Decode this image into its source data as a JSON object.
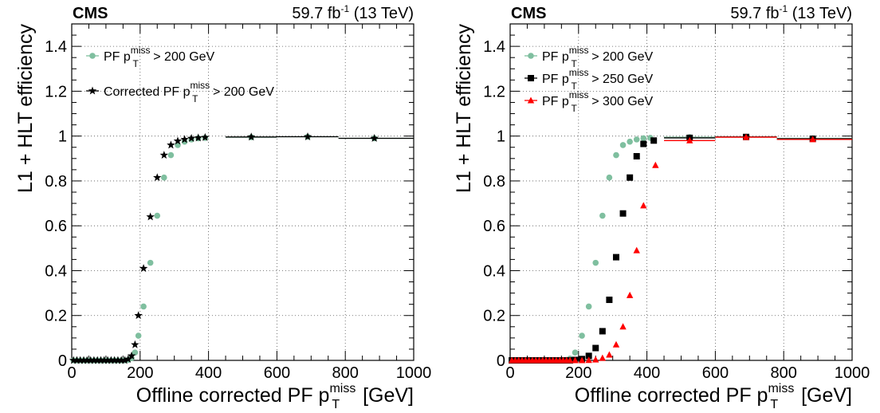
{
  "chart_data": [
    {
      "type": "scatter",
      "experiment": "CMS",
      "lumi": {
        "value": "59.7 fb",
        "exp": "-1",
        "energy": "(13 TeV)"
      },
      "xlabel": {
        "pre": "Offline corrected PF p",
        "sup": "miss",
        "sub": "T",
        "post": " [GeV]"
      },
      "ylabel": "L1 + HLT efficiency",
      "xlim": [
        0,
        1000
      ],
      "ylim": [
        0,
        1.5
      ],
      "xticks": [
        0,
        200,
        400,
        600,
        800,
        1000
      ],
      "yticks": [
        0,
        0.2,
        0.4,
        0.6,
        0.8,
        1,
        1.2,
        1.4
      ],
      "xtick_labels": [
        "0",
        "200",
        "400",
        "600",
        "800",
        "1000"
      ],
      "ytick_labels": [
        "0",
        "0.2",
        "0.4",
        "0.6",
        "0.8",
        "1",
        "1.2",
        "1.4"
      ],
      "grid": true,
      "legend_position": "top-left",
      "series": [
        {
          "name": "PF p_T^miss > 200 GeV",
          "label": {
            "pre": "PF p",
            "sup": "miss",
            "sub": "T",
            "post": " > 200 GeV"
          },
          "marker": "circle",
          "color": "#7fbf9f",
          "x": [
            5,
            15,
            25,
            35,
            45,
            55,
            65,
            75,
            85,
            95,
            105,
            115,
            125,
            135,
            145,
            155,
            165,
            175,
            185,
            195,
            210,
            230,
            250,
            270,
            290,
            310,
            330,
            350,
            370,
            390
          ],
          "y": [
            0,
            0,
            0,
            0,
            0,
            0,
            0,
            0,
            0,
            0,
            0,
            0,
            0,
            0,
            0,
            0,
            0.002,
            0.01,
            0.035,
            0.11,
            0.24,
            0.435,
            0.645,
            0.815,
            0.915,
            0.96,
            0.975,
            0.985,
            0.99,
            0.992
          ],
          "xerr": [],
          "wide_bins": [
            {
              "x": 525,
              "lo": 450,
              "hi": 600,
              "y": 0.995
            },
            {
              "x": 690,
              "lo": 600,
              "hi": 780,
              "y": 0.997
            },
            {
              "x": 885,
              "lo": 780,
              "hi": 1000,
              "y": 0.99
            }
          ]
        },
        {
          "name": "Corrected PF p_T^miss > 200 GeV",
          "label": {
            "pre": "Corrected PF p",
            "sup": "miss",
            "sub": "T",
            "post": " > 200 GeV"
          },
          "marker": "star",
          "color": "#000000",
          "x": [
            5,
            15,
            25,
            35,
            45,
            55,
            65,
            75,
            85,
            95,
            105,
            115,
            125,
            135,
            145,
            155,
            165,
            175,
            185,
            195,
            210,
            230,
            250,
            270,
            290,
            310,
            330,
            350,
            370,
            390
          ],
          "y": [
            0,
            0,
            0,
            0,
            0,
            0,
            0,
            0,
            0,
            0,
            0,
            0,
            0,
            0,
            0,
            0,
            0.005,
            0.02,
            0.07,
            0.2,
            0.41,
            0.64,
            0.815,
            0.915,
            0.96,
            0.978,
            0.985,
            0.99,
            0.992,
            0.994
          ],
          "wide_bins": [
            {
              "x": 525,
              "lo": 450,
              "hi": 600,
              "y": 0.996
            },
            {
              "x": 690,
              "lo": 600,
              "hi": 780,
              "y": 0.997
            },
            {
              "x": 885,
              "lo": 780,
              "hi": 1000,
              "y": 0.99
            }
          ]
        }
      ]
    },
    {
      "type": "scatter",
      "experiment": "CMS",
      "lumi": {
        "value": "59.7 fb",
        "exp": "-1",
        "energy": "(13 TeV)"
      },
      "xlabel": {
        "pre": "Offline corrected PF p",
        "sup": "miss",
        "sub": "T",
        "post": " [GeV]"
      },
      "ylabel": "L1 + HLT efficiency",
      "xlim": [
        0,
        1000
      ],
      "ylim": [
        0,
        1.5
      ],
      "xticks": [
        0,
        200,
        400,
        600,
        800,
        1000
      ],
      "yticks": [
        0,
        0.2,
        0.4,
        0.6,
        0.8,
        1,
        1.2,
        1.4
      ],
      "xtick_labels": [
        "0",
        "200",
        "400",
        "600",
        "800",
        "1000"
      ],
      "ytick_labels": [
        "0",
        "0.2",
        "0.4",
        "0.6",
        "0.8",
        "1",
        "1.2",
        "1.4"
      ],
      "grid": true,
      "legend_position": "top-left",
      "series": [
        {
          "name": "PF p_T^miss > 200 GeV",
          "label": {
            "pre": "PF p",
            "sup": "miss",
            "sub": "T",
            "post": " > 200 GeV"
          },
          "marker": "circle",
          "color": "#7fbf9f",
          "x": [
            5,
            15,
            25,
            35,
            45,
            55,
            65,
            75,
            85,
            95,
            105,
            115,
            125,
            135,
            145,
            155,
            165,
            175,
            190,
            210,
            230,
            250,
            270,
            290,
            310,
            330,
            350,
            370,
            390,
            410
          ],
          "y": [
            0,
            0,
            0,
            0,
            0,
            0,
            0,
            0,
            0,
            0,
            0,
            0,
            0,
            0,
            0,
            0,
            0.002,
            0.008,
            0.035,
            0.11,
            0.24,
            0.435,
            0.645,
            0.815,
            0.915,
            0.96,
            0.975,
            0.985,
            0.99,
            0.992
          ],
          "wide_bins": [
            {
              "x": 525,
              "lo": 450,
              "hi": 600,
              "y": 0.995
            },
            {
              "x": 690,
              "lo": 600,
              "hi": 780,
              "y": 0.997
            },
            {
              "x": 885,
              "lo": 780,
              "hi": 1000,
              "y": 0.99
            }
          ]
        },
        {
          "name": "PF p_T^miss > 250 GeV",
          "label": {
            "pre": "PF p",
            "sup": "miss",
            "sub": "T",
            "post": " > 250 GeV"
          },
          "marker": "square",
          "color": "#000000",
          "x": [
            5,
            15,
            25,
            35,
            45,
            55,
            65,
            75,
            85,
            95,
            105,
            115,
            125,
            135,
            145,
            155,
            165,
            175,
            190,
            210,
            230,
            250,
            270,
            290,
            310,
            330,
            350,
            370,
            390,
            420
          ],
          "y": [
            0,
            0,
            0,
            0,
            0,
            0,
            0,
            0,
            0,
            0,
            0,
            0,
            0,
            0,
            0,
            0,
            0,
            0,
            0.002,
            0.006,
            0.02,
            0.055,
            0.13,
            0.27,
            0.46,
            0.655,
            0.815,
            0.91,
            0.965,
            0.98
          ],
          "wide_bins": [
            {
              "x": 525,
              "lo": 450,
              "hi": 600,
              "y": 0.992
            },
            {
              "x": 690,
              "lo": 600,
              "hi": 780,
              "y": 0.996
            },
            {
              "x": 885,
              "lo": 780,
              "hi": 1000,
              "y": 0.988
            }
          ]
        },
        {
          "name": "PF p_T^miss > 300 GeV",
          "label": {
            "pre": "PF p",
            "sup": "miss",
            "sub": "T",
            "post": " > 300 GeV"
          },
          "marker": "triangle",
          "color": "#ff0000",
          "x": [
            5,
            15,
            25,
            35,
            45,
            55,
            65,
            75,
            85,
            95,
            105,
            115,
            125,
            135,
            145,
            155,
            165,
            175,
            190,
            210,
            230,
            250,
            270,
            290,
            310,
            330,
            350,
            370,
            390,
            425
          ],
          "y": [
            0,
            0,
            0,
            0,
            0,
            0,
            0,
            0,
            0,
            0,
            0,
            0,
            0,
            0,
            0,
            0,
            0,
            0,
            0,
            0,
            0.001,
            0.003,
            0.01,
            0.025,
            0.07,
            0.15,
            0.29,
            0.49,
            0.69,
            0.87
          ],
          "wide_bins": [
            {
              "x": 525,
              "lo": 450,
              "hi": 600,
              "y": 0.98
            },
            {
              "x": 690,
              "lo": 600,
              "hi": 780,
              "y": 0.995
            },
            {
              "x": 885,
              "lo": 780,
              "hi": 1000,
              "y": 0.985
            }
          ]
        }
      ]
    }
  ]
}
